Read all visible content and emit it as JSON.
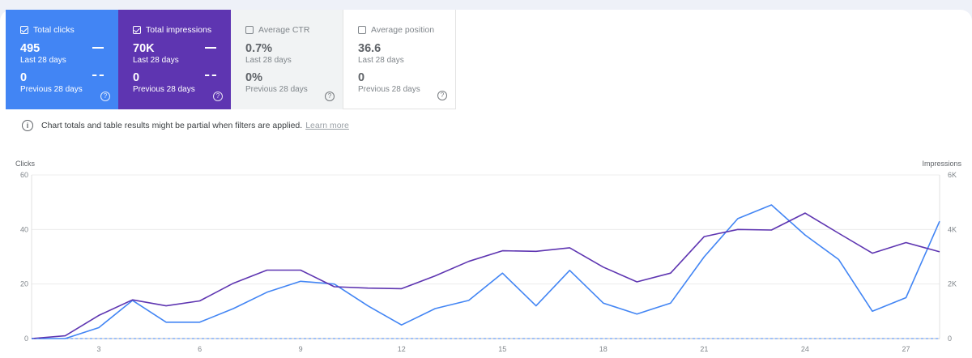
{
  "cards": [
    {
      "id": "clicks",
      "label": "Total clicks",
      "checked": true,
      "value": "495",
      "period": "Last 28 days",
      "prev_value": "0",
      "prev_period": "Previous 28 days"
    },
    {
      "id": "impressions",
      "label": "Total impressions",
      "checked": true,
      "value": "70K",
      "period": "Last 28 days",
      "prev_value": "0",
      "prev_period": "Previous 28 days"
    },
    {
      "id": "ctr",
      "label": "Average CTR",
      "checked": false,
      "value": "0.7%",
      "period": "Last 28 days",
      "prev_value": "0%",
      "prev_period": "Previous 28 days"
    },
    {
      "id": "position",
      "label": "Average position",
      "checked": false,
      "value": "36.6",
      "period": "Last 28 days",
      "prev_value": "0",
      "prev_period": "Previous 28 days"
    }
  ],
  "help_glyph": "?",
  "notice": {
    "text": "Chart totals and table results might be partial when filters are applied.",
    "link": "Learn more"
  },
  "colors": {
    "clicks": "#4285f4",
    "impressions": "#5e35b1"
  },
  "chart_data": {
    "type": "line",
    "ylabel_left": "Clicks",
    "ylabel_right": "Impressions",
    "yticks_left": [
      "0",
      "20",
      "40",
      "60"
    ],
    "yticks_right": [
      "0",
      "2K",
      "4K",
      "6K"
    ],
    "ylim_left": [
      0,
      60
    ],
    "ylim_right": [
      0,
      6000
    ],
    "xticks": [
      "3",
      "6",
      "9",
      "12",
      "15",
      "18",
      "21",
      "24",
      "27"
    ],
    "x": [
      1,
      2,
      3,
      4,
      5,
      6,
      7,
      8,
      9,
      10,
      11,
      12,
      13,
      14,
      15,
      16,
      17,
      18,
      19,
      20,
      21,
      22,
      23,
      24,
      25,
      26,
      27,
      28
    ],
    "series": [
      {
        "axis": "left",
        "values": [
          0,
          0,
          4,
          14,
          6,
          6,
          11,
          17,
          21,
          20,
          12,
          5,
          11,
          14,
          24,
          12,
          25,
          13,
          9,
          13,
          30,
          44,
          49,
          38,
          29,
          10,
          15,
          43
        ]
      },
      {
        "axis": "right",
        "values": [
          0,
          100,
          850,
          1420,
          1200,
          1380,
          2030,
          2510,
          2510,
          1900,
          1850,
          1830,
          2300,
          2830,
          3220,
          3200,
          3330,
          2620,
          2080,
          2400,
          3740,
          4000,
          3980,
          4600,
          3860,
          3130,
          3520,
          3180
        ]
      },
      {
        "axis": "left",
        "values": [
          0,
          0,
          0,
          0,
          0,
          0,
          0,
          0,
          0,
          0,
          0,
          0,
          0,
          0,
          0,
          0,
          0,
          0,
          0,
          0,
          0,
          0,
          0,
          0,
          0,
          0,
          0,
          0
        ],
        "dashed": true
      }
    ]
  }
}
